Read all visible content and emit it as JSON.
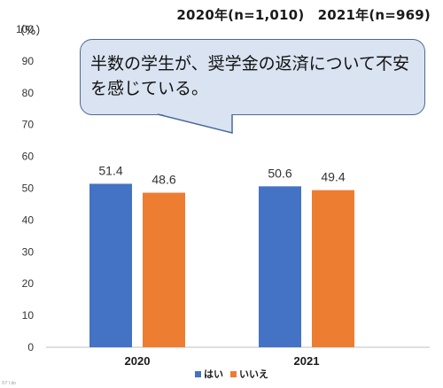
{
  "chart_data": {
    "type": "bar",
    "title": "",
    "subtitle": "2020年(n=1,010)　2021年(n=969)",
    "unit_label": "（%）",
    "categories": [
      "2020",
      "2021"
    ],
    "series": [
      {
        "name": "はい",
        "values": [
          51.4,
          50.6
        ],
        "color": "#4472c4"
      },
      {
        "name": "いいえ",
        "values": [
          48.6,
          49.4
        ],
        "color": "#ed7d31"
      }
    ],
    "value_labels": [
      [
        "51.4",
        "50.6"
      ],
      [
        "48.6",
        "49.4"
      ]
    ],
    "ylim": [
      0,
      100
    ],
    "yticks": [
      "0",
      "10",
      "20",
      "30",
      "40",
      "50",
      "60",
      "70",
      "80",
      "90",
      "100"
    ],
    "grid": false,
    "legend_position": "bottom",
    "annotation": "半数の学生が、奨学金の返済について不安を感じている。"
  },
  "credit": "©7 l do"
}
